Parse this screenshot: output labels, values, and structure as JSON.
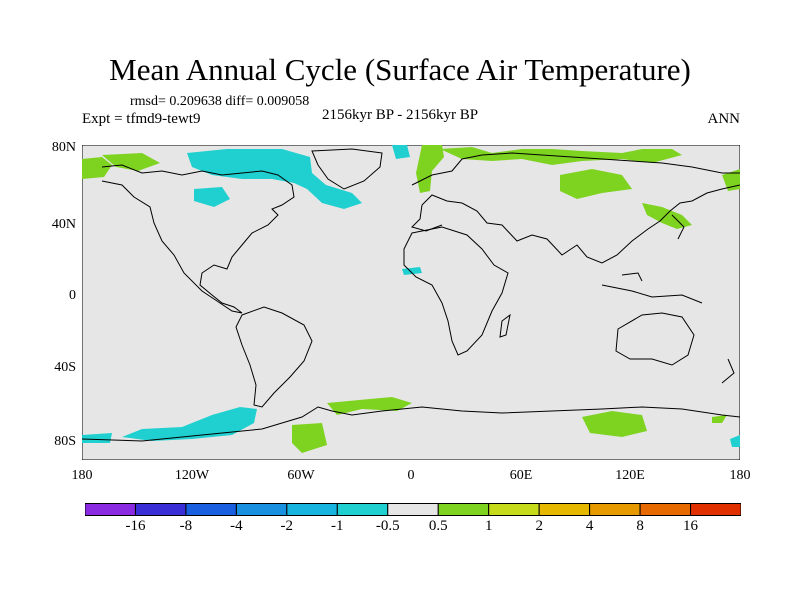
{
  "title": "Mean Annual Cycle (Surface Air Temperature)",
  "stats": "rmsd= 0.209638 diff= 0.009058",
  "expt": "Expt = tfmd9-tewt9",
  "period": "2156kyr BP - 2156kyr BP",
  "season": "ANN",
  "lat_ticks": [
    "80N",
    "40N",
    "0",
    "40S",
    "80S"
  ],
  "lon_ticks": [
    "180",
    "120W",
    "60W",
    "0",
    "60E",
    "120E",
    "180"
  ],
  "colorbar": {
    "labels": [
      "-16",
      "-8",
      "-4",
      "-2",
      "-1",
      "-0.5",
      "0.5",
      "1",
      "2",
      "4",
      "8",
      "16"
    ],
    "colors": [
      "#8a2be2",
      "#3a2fd6",
      "#1a5fe0",
      "#1a90e0",
      "#18b4e0",
      "#20d0d0",
      "#e6e6e6",
      "#7ed321",
      "#c6dc1a",
      "#e6b800",
      "#e69a00",
      "#e66a00",
      "#e03000"
    ]
  },
  "colors": {
    "ocean_land_bg": "#e6e6e6",
    "cool": "#20d0d0",
    "warm": "#7ed321"
  }
}
